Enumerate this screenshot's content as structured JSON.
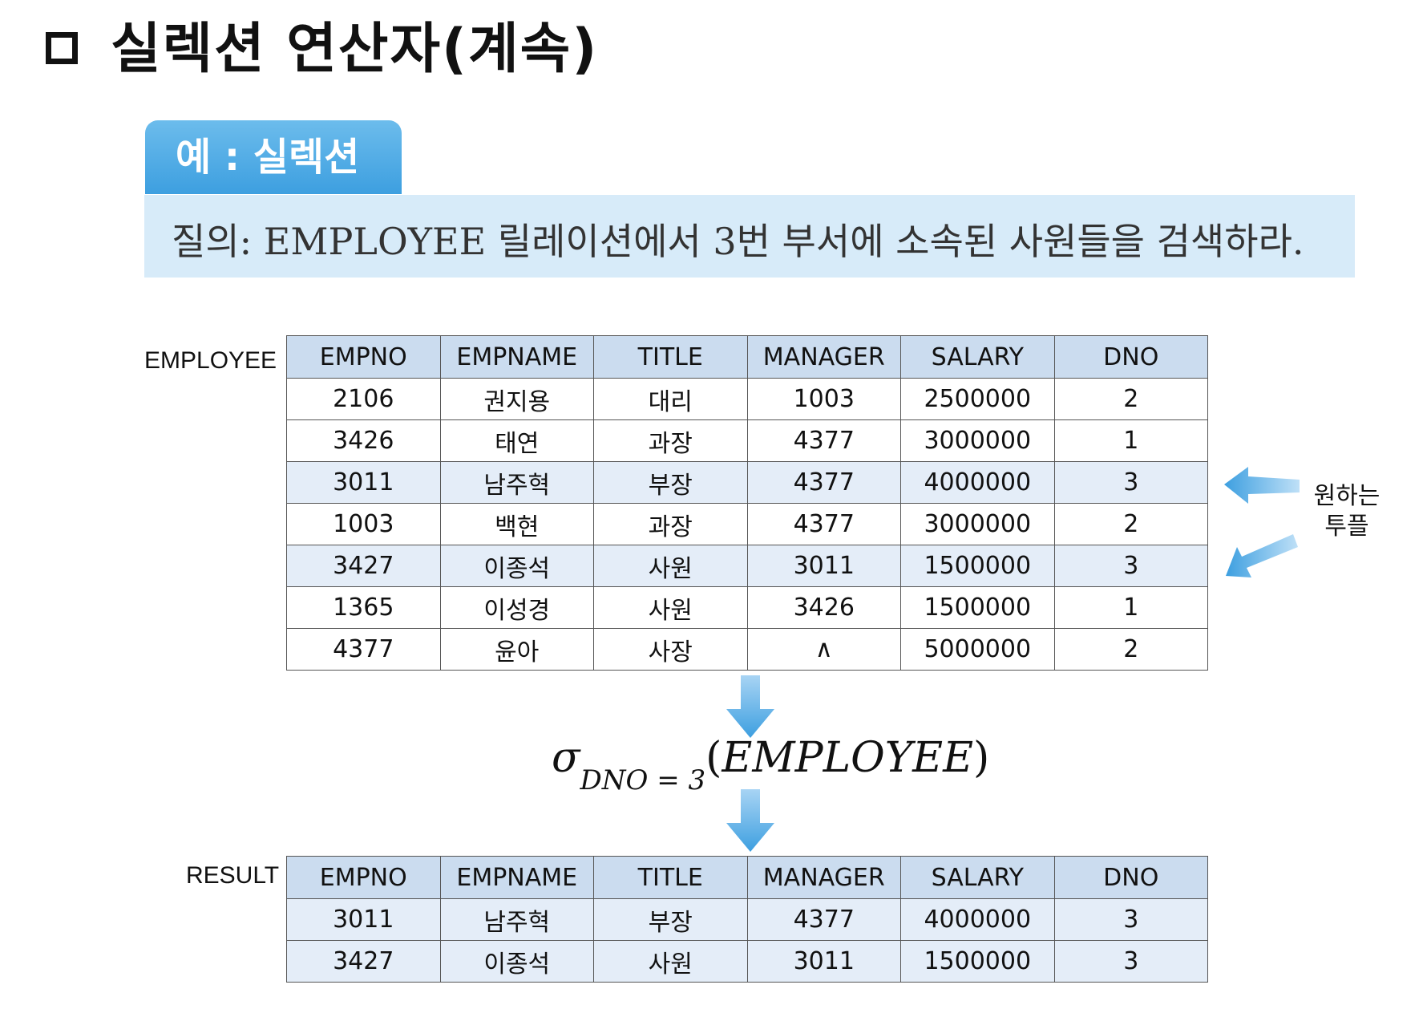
{
  "header": {
    "title": "실렉션 연산자(계속)"
  },
  "example": {
    "tab_label": "예 : 실렉션",
    "query": "질의: EMPLOYEE 릴레이션에서 3번 부서에 소속된 사원들을 검색하라."
  },
  "employee": {
    "name": "EMPLOYEE",
    "columns": [
      "EMPNO",
      "EMPNAME",
      "TITLE",
      "MANAGER",
      "SALARY",
      "DNO"
    ],
    "rows": [
      [
        "2106",
        "권지용",
        "대리",
        "1003",
        "2500000",
        "2"
      ],
      [
        "3426",
        "태연",
        "과장",
        "4377",
        "3000000",
        "1"
      ],
      [
        "3011",
        "남주혁",
        "부장",
        "4377",
        "4000000",
        "3"
      ],
      [
        "1003",
        "백현",
        "과장",
        "4377",
        "3000000",
        "2"
      ],
      [
        "3427",
        "이종석",
        "사원",
        "3011",
        "1500000",
        "3"
      ],
      [
        "1365",
        "이성경",
        "사원",
        "3426",
        "1500000",
        "1"
      ],
      [
        "4377",
        "윤아",
        "사장",
        "∧",
        "5000000",
        "2"
      ]
    ]
  },
  "formula": {
    "sigma": "σ",
    "condition": "DNO = 3",
    "relation": "EMPLOYEE"
  },
  "result": {
    "name": "RESULT",
    "columns": [
      "EMPNO",
      "EMPNAME",
      "TITLE",
      "MANAGER",
      "SALARY",
      "DNO"
    ],
    "rows": [
      [
        "3011",
        "남주혁",
        "부장",
        "4377",
        "4000000",
        "3"
      ],
      [
        "3427",
        "이종석",
        "사원",
        "3011",
        "1500000",
        "3"
      ]
    ]
  },
  "annotation": {
    "line1": "원하는",
    "line2": "투플"
  },
  "colors": {
    "accent": "#3d9fe0",
    "banner_bg": "#d7ebf9",
    "header_bg": "#cbdcef",
    "highlight_row": "#e4edf8",
    "arrow": "#4aa7e6"
  }
}
